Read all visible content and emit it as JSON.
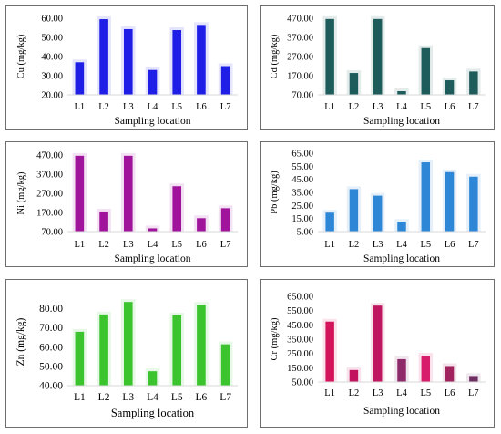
{
  "chart_data": [
    {
      "type": "bar",
      "categories": [
        "L1",
        "L2",
        "L3",
        "L4",
        "L5",
        "L6",
        "L7"
      ],
      "values": [
        37.0,
        59.5,
        54.3,
        33.0,
        53.8,
        56.5,
        35.0
      ],
      "ylabel": "Cu (mg/kg)",
      "xlabel": "Sampling location",
      "ylim": [
        20,
        60
      ],
      "yticks": [
        "20.00",
        "30.00",
        "40.00",
        "50.00",
        "60.00"
      ],
      "grid": false,
      "color": "#1e1ee6"
    },
    {
      "type": "bar",
      "categories": [
        "L1",
        "L2",
        "L3",
        "L4",
        "L5",
        "L6",
        "L7"
      ],
      "values": [
        466,
        184,
        466,
        89,
        314,
        146,
        192
      ],
      "ylabel": "Cd (mg/kg)",
      "xlabel": "Sampling location",
      "ylim": [
        70,
        470
      ],
      "yticks": [
        "70.00",
        "170.00",
        "270.00",
        "370.00",
        "470.00"
      ],
      "grid": false,
      "color": "#1e5b5b"
    },
    {
      "type": "bar",
      "categories": [
        "L1",
        "L2",
        "L3",
        "L4",
        "L5",
        "L6",
        "L7"
      ],
      "values": [
        466,
        175,
        466,
        87,
        307,
        140,
        192
      ],
      "ylabel": "Ni (mg/kg)",
      "xlabel": "Sampling location",
      "ylim": [
        70,
        470
      ],
      "yticks": [
        "70.00",
        "170.00",
        "270.00",
        "370.00",
        "470.00"
      ],
      "grid": false,
      "color": "#a0149b"
    },
    {
      "type": "bar",
      "categories": [
        "L1",
        "L2",
        "L3",
        "L4",
        "L5",
        "L6",
        "L7"
      ],
      "values": [
        19.5,
        37.5,
        32.5,
        12.5,
        58.0,
        50.5,
        47.0
      ],
      "ylabel": "Pb (mg/kg)",
      "xlabel": "Sampling location",
      "ylim": [
        5,
        65
      ],
      "yticks": [
        "5.00",
        "15.00",
        "25.00",
        "35.00",
        "45.00",
        "55.00",
        "65.00"
      ],
      "grid": false,
      "color": "#2e86d6"
    },
    {
      "type": "bar",
      "categories": [
        "L1",
        "L2",
        "L3",
        "L4",
        "L5",
        "L6",
        "L7"
      ],
      "values": [
        68,
        77,
        83.5,
        47.5,
        76.5,
        82,
        61.5
      ],
      "ylabel": "Zn (mg/kg)",
      "xlabel": "Sampling location",
      "ylim": [
        40,
        85
      ],
      "yticks": [
        "40.00",
        "50.00",
        "60.00",
        "70.00",
        "80.00"
      ],
      "grid": false,
      "color": "#3cc42e"
    },
    {
      "type": "bar",
      "categories": [
        "L1",
        "L2",
        "L3",
        "L4",
        "L5",
        "L6",
        "L7"
      ],
      "values": [
        473,
        134,
        585,
        210,
        235,
        162,
        92
      ],
      "ylabel": "Cr (mg/kg)",
      "xlabel": "Sampling location",
      "ylim": [
        50,
        650
      ],
      "yticks": [
        "50.00",
        "150.00",
        "250.00",
        "350.00",
        "450.00",
        "550.00",
        "650.00"
      ],
      "grid": false,
      "colors": [
        "#d4145a",
        "#c2145e",
        "#c01560",
        "#8c2a6a",
        "#d81c6c",
        "#a0235e",
        "#6e2e62"
      ]
    }
  ]
}
